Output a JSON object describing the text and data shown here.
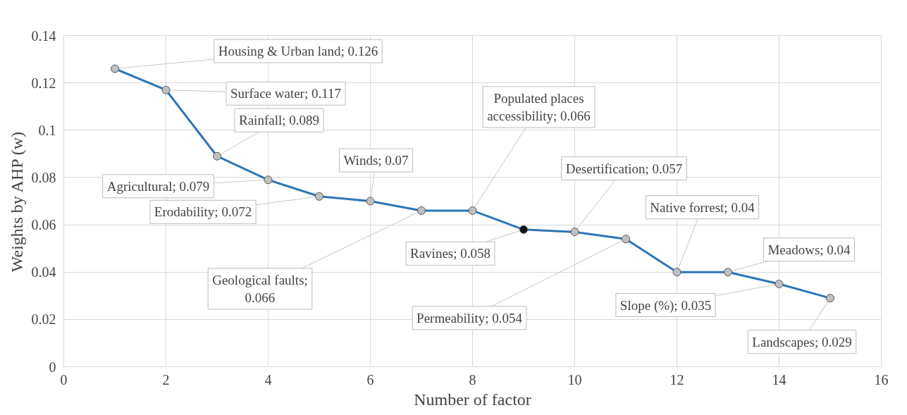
{
  "chart_data": {
    "type": "line",
    "xlabel": "Number of factor",
    "ylabel": "Weights by AHP (w)",
    "x": [
      1,
      2,
      3,
      4,
      5,
      6,
      7,
      8,
      9,
      10,
      11,
      12,
      13,
      14,
      15
    ],
    "series": [
      {
        "color": "#2e75b6",
        "colors": [
          "#c0c0c0",
          "#c0c0c0",
          "#c0c0c0",
          "#c0c0c0",
          "#c0c0c0",
          "#c0c0c0",
          "#c0c0c0",
          "#c0c0c0",
          "#111111",
          "#c0c0c0",
          "#c0c0c0",
          "#c0c0c0",
          "#c0c0c0",
          "#c0c0c0",
          "#c0c0c0"
        ],
        "values": [
          0.126,
          0.117,
          0.089,
          0.079,
          0.072,
          0.07,
          0.066,
          0.066,
          0.058,
          0.057,
          0.054,
          0.04,
          0.04,
          0.035,
          0.029
        ]
      }
    ],
    "xlim": [
      0,
      16
    ],
    "xticks": [
      0,
      2,
      4,
      6,
      8,
      10,
      12,
      14,
      16
    ],
    "ylim": [
      0,
      0.14
    ],
    "yticks": [
      0,
      0.02,
      0.04,
      0.06,
      0.08,
      0.1,
      0.12,
      0.14
    ],
    "grid": true,
    "legend": false,
    "marker": "circle",
    "line_style": "solid",
    "annotations": [
      {
        "text": "Housing & Urban land; 0.126",
        "x": 1,
        "y": 0.126
      },
      {
        "text": "Surface water; 0.117",
        "x": 2,
        "y": 0.117
      },
      {
        "text": "Rainfall; 0.089",
        "x": 3,
        "y": 0.089
      },
      {
        "text": "Agricultural; 0.079",
        "x": 4,
        "y": 0.079
      },
      {
        "text": "Erodability; 0.072",
        "x": 5,
        "y": 0.072
      },
      {
        "text": "Winds; 0.07",
        "x": 6,
        "y": 0.07
      },
      {
        "text": "Geological faults;\n0.066",
        "x": 7,
        "y": 0.066
      },
      {
        "text": "Populated places\naccessibility; 0.066",
        "x": 8,
        "y": 0.066
      },
      {
        "text": "Ravines; 0.058",
        "x": 9,
        "y": 0.058
      },
      {
        "text": "Desertification; 0.057",
        "x": 10,
        "y": 0.057
      },
      {
        "text": "Permeability; 0.054",
        "x": 11,
        "y": 0.054
      },
      {
        "text": "Native forrest; 0.04",
        "x": 12,
        "y": 0.04
      },
      {
        "text": "Meadows; 0.04",
        "x": 13,
        "y": 0.04
      },
      {
        "text": "Slope (%); 0.035",
        "x": 14,
        "y": 0.035
      },
      {
        "text": "Landscapes; 0.029",
        "x": 15,
        "y": 0.029
      }
    ]
  }
}
